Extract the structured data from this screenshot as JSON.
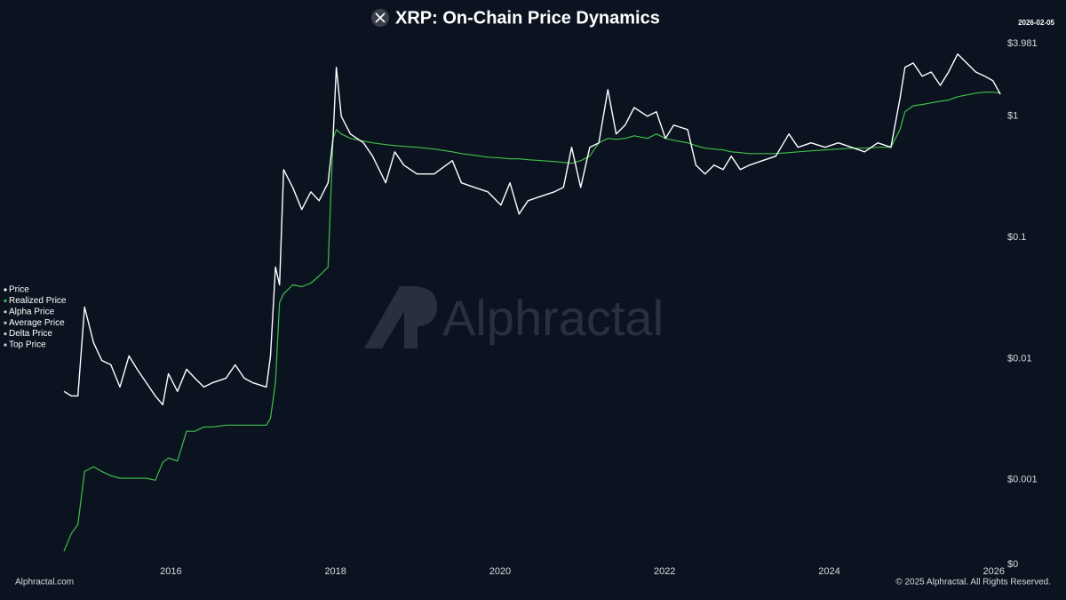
{
  "chart_data": {
    "type": "line",
    "title": "XRP: On-Chain Price Dynamics",
    "date": "2026-02-05",
    "watermark": "Alphractal",
    "source": "Alphractal.com",
    "copyright": "© 2025 Alphractal. All Rights Reserved.",
    "log_scale": true,
    "grid": false,
    "legend": "left",
    "xlim": [
      2014.7,
      2026.1
    ],
    "xticks": [
      2016,
      2018,
      2020,
      2022,
      2024,
      2026
    ],
    "ylim": [
      0.0002,
      3.981
    ],
    "yticks": [
      {
        "value": 0.0002,
        "label": "$0"
      },
      {
        "value": 0.001,
        "label": "$0.001"
      },
      {
        "value": 0.01,
        "label": "$0.01"
      },
      {
        "value": 0.1,
        "label": "$0.1"
      },
      {
        "value": 1,
        "label": "$1"
      },
      {
        "value": 3.981,
        "label": "$3.981"
      }
    ],
    "x": [
      2014.7,
      2014.79,
      2014.87,
      2014.95,
      2015.06,
      2015.16,
      2015.27,
      2015.38,
      2015.49,
      2015.59,
      2015.7,
      2015.81,
      2015.9,
      2015.97,
      2016.08,
      2016.19,
      2016.29,
      2016.4,
      2016.51,
      2016.67,
      2016.78,
      2016.89,
      2016.99,
      2017.16,
      2017.21,
      2017.27,
      2017.32,
      2017.37,
      2017.48,
      2017.59,
      2017.7,
      2017.8,
      2017.91,
      2017.97,
      2018.01,
      2018.07,
      2018.18,
      2018.34,
      2018.45,
      2018.61,
      2018.72,
      2018.83,
      2018.99,
      2019.2,
      2019.42,
      2019.53,
      2019.69,
      2019.85,
      2020.01,
      2020.12,
      2020.23,
      2020.34,
      2020.5,
      2020.66,
      2020.77,
      2020.87,
      2020.98,
      2021.09,
      2021.2,
      2021.31,
      2021.41,
      2021.52,
      2021.63,
      2021.79,
      2021.9,
      2022.01,
      2022.11,
      2022.28,
      2022.38,
      2022.49,
      2022.6,
      2022.71,
      2022.81,
      2022.92,
      2023.03,
      2023.19,
      2023.35,
      2023.51,
      2023.62,
      2023.78,
      2023.95,
      2024.11,
      2024.27,
      2024.43,
      2024.59,
      2024.75,
      2024.86,
      2024.92,
      2025.02,
      2025.13,
      2025.24,
      2025.35,
      2025.45,
      2025.56,
      2025.67,
      2025.78,
      2025.89,
      2025.99,
      2026.08
    ],
    "series": [
      {
        "name": "Price",
        "color": "#ffffff",
        "values": [
          0.00536,
          0.00492,
          0.00492,
          0.0266,
          0.01355,
          0.00966,
          0.00889,
          0.00583,
          0.01052,
          0.00817,
          0.00634,
          0.00492,
          0.00416,
          0.0075,
          0.00536,
          0.00817,
          0.0069,
          0.00583,
          0.00634,
          0.0069,
          0.00889,
          0.0069,
          0.00634,
          0.00583,
          0.01052,
          0.0569,
          0.0406,
          0.363,
          0.259,
          0.17,
          0.238,
          0.201,
          0.282,
          0.656,
          2.53,
          1,
          0.714,
          0.603,
          0.468,
          0.282,
          0.509,
          0.395,
          0.334,
          0.334,
          0.43,
          0.282,
          0.259,
          0.238,
          0.185,
          0.282,
          0.156,
          0.201,
          0.219,
          0.238,
          0.259,
          0.554,
          0.259,
          0.554,
          0.603,
          1.66,
          0.714,
          0.845,
          1.18,
          1,
          1.09,
          0.656,
          0.845,
          0.776,
          0.395,
          0.334,
          0.395,
          0.363,
          0.468,
          0.363,
          0.395,
          0.43,
          0.468,
          0.714,
          0.554,
          0.603,
          0.554,
          0.603,
          0.554,
          0.509,
          0.603,
          0.554,
          1.4,
          2.53,
          2.75,
          2.14,
          2.32,
          1.8,
          2.32,
          3.26,
          2.75,
          2.32,
          2.14,
          1.96,
          1.52
        ]
      },
      {
        "name": "Realized Price",
        "color": "#3fbf4a",
        "values": [
          0.000257,
          0.00036,
          0.000427,
          0.00117,
          0.00128,
          0.00117,
          0.00108,
          0.00103,
          0.00103,
          0.00103,
          0.00103,
          0.00099,
          0.00139,
          0.00151,
          0.00143,
          0.00251,
          0.00251,
          0.00273,
          0.00273,
          0.00282,
          0.00282,
          0.00282,
          0.00282,
          0.00282,
          0.00323,
          0.00634,
          0.029,
          0.0343,
          0.0406,
          0.0392,
          0.042,
          0.048,
          0.0569,
          0.656,
          0.776,
          0.714,
          0.656,
          0.624,
          0.603,
          0.583,
          0.573,
          0.564,
          0.554,
          0.536,
          0.509,
          0.492,
          0.476,
          0.46,
          0.453,
          0.445,
          0.445,
          0.438,
          0.43,
          0.423,
          0.416,
          0.409,
          0.43,
          0.468,
          0.603,
          0.656,
          0.645,
          0.656,
          0.69,
          0.656,
          0.714,
          0.656,
          0.634,
          0.603,
          0.573,
          0.545,
          0.536,
          0.527,
          0.509,
          0.501,
          0.492,
          0.492,
          0.492,
          0.501,
          0.509,
          0.518,
          0.527,
          0.536,
          0.545,
          0.545,
          0.554,
          0.554,
          0.776,
          1.09,
          1.22,
          1.25,
          1.29,
          1.33,
          1.36,
          1.45,
          1.5,
          1.55,
          1.58,
          1.58,
          1.55
        ]
      }
    ],
    "legend_extra": [
      {
        "name": "Alpha Price",
        "color": "#c9ccd3"
      },
      {
        "name": "Average Price",
        "color": "#c9ccd3"
      },
      {
        "name": "Delta Price",
        "color": "#c9ccd3"
      },
      {
        "name": "Top Price",
        "color": "#c9ccd3"
      }
    ]
  }
}
